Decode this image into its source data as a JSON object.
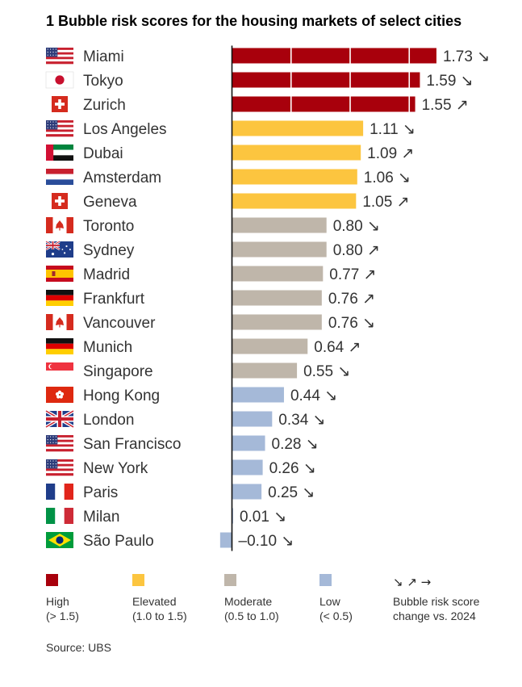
{
  "chart_data": {
    "type": "bar",
    "orientation": "horizontal",
    "title": "1 Bubble risk scores for the housing markets of select cities",
    "categories": [
      "Miami",
      "Tokyo",
      "Zurich",
      "Los Angeles",
      "Dubai",
      "Amsterdam",
      "Geneva",
      "Toronto",
      "Sydney",
      "Madrid",
      "Frankfurt",
      "Vancouver",
      "Munich",
      "Singapore",
      "Hong Kong",
      "London",
      "San Francisco",
      "New York",
      "Paris",
      "Milan",
      "São Paulo"
    ],
    "values": [
      1.73,
      1.59,
      1.55,
      1.11,
      1.09,
      1.06,
      1.05,
      0.8,
      0.8,
      0.77,
      0.76,
      0.76,
      0.64,
      0.55,
      0.44,
      0.34,
      0.28,
      0.26,
      0.25,
      0.01,
      -0.1
    ],
    "value_labels": [
      "1.73",
      "1.59",
      "1.55",
      "1.11",
      "1.09",
      "1.06",
      "1.05",
      "0.80",
      "0.80",
      "0.77",
      "0.76",
      "0.76",
      "0.64",
      "0.55",
      "0.44",
      "0.34",
      "0.28",
      "0.26",
      "0.25",
      "0.01",
      "–0.10"
    ],
    "change": [
      "down",
      "down",
      "up",
      "down",
      "up",
      "down",
      "up",
      "down",
      "up",
      "up",
      "up",
      "down",
      "up",
      "down",
      "down",
      "down",
      "down",
      "down",
      "down",
      "down",
      "down"
    ],
    "category_class": [
      "high",
      "high",
      "high",
      "elevated",
      "elevated",
      "elevated",
      "elevated",
      "moderate",
      "moderate",
      "moderate",
      "moderate",
      "moderate",
      "moderate",
      "moderate",
      "low",
      "low",
      "low",
      "low",
      "low",
      "low",
      "low"
    ],
    "flags": [
      "usa",
      "japan",
      "switzerland",
      "usa",
      "uae",
      "netherlands",
      "switzerland",
      "canada",
      "australia",
      "spain",
      "germany",
      "canada",
      "germany",
      "singapore",
      "hongkong",
      "uk",
      "usa",
      "usa",
      "france",
      "italy",
      "brazil"
    ],
    "xlim": [
      -0.1,
      1.73
    ],
    "grid": false,
    "legend_placement": "bottom"
  },
  "colors": {
    "high": "#a8000c",
    "elevated": "#fcc53f",
    "moderate": "#bfb6aa",
    "low": "#a5b9d8"
  },
  "arrows": {
    "up": "↗",
    "down": "↘"
  },
  "legend": {
    "items": [
      {
        "key": "high",
        "label": "High",
        "range": "(> 1.5)"
      },
      {
        "key": "elevated",
        "label": "Elevated",
        "range": "(1.0 to 1.5)"
      },
      {
        "key": "moderate",
        "label": "Moderate",
        "range": "(0.5 to 1.0)"
      },
      {
        "key": "low",
        "label": "Low",
        "range": "(< 0.5)"
      }
    ],
    "change_arrows": "↘ ↗ →",
    "change_label_1": "Bubble risk score",
    "change_label_2": "change vs. 2024"
  },
  "source": "Source: UBS"
}
